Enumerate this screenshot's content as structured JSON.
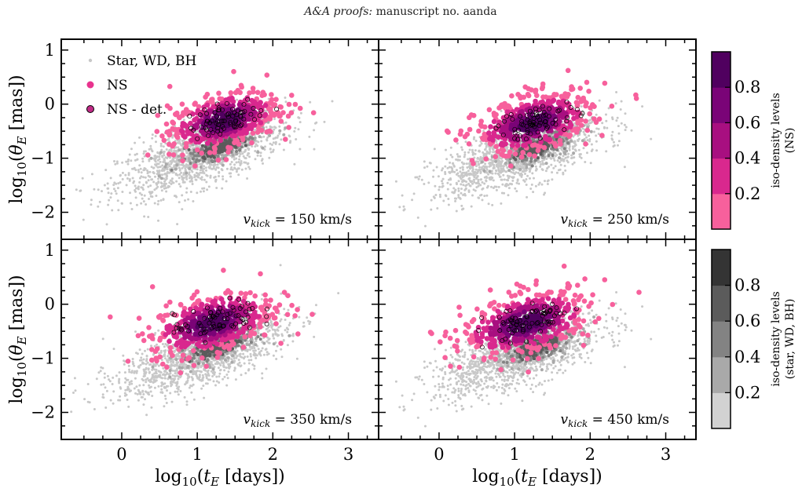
{
  "header": {
    "italic": "A&A proofs:",
    "rest": " manuscript no. aanda"
  },
  "chart_data": {
    "type": "scatter",
    "layout": "2x2 grid with shared axes",
    "xlabel": "log10 (tE [days])",
    "ylabel": "log10 (θE [mas])",
    "xlim": [
      -0.8,
      3.4
    ],
    "ylim": [
      -2.5,
      1.2
    ],
    "xticks": [
      0,
      1,
      2,
      3
    ],
    "yticks": [
      -2,
      -1,
      0,
      1
    ],
    "legend": {
      "position": "top-left",
      "entries": [
        {
          "label": "Star, WD, BH",
          "color": "#c8c8c8",
          "marker": "small dot"
        },
        {
          "label": "NS",
          "color": "#e8338e",
          "marker": "filled circle"
        },
        {
          "label": "NS - det.",
          "color": "#c02b86",
          "marker": "circle with black edge"
        }
      ]
    },
    "panels": [
      {
        "label_prefix": "v",
        "label_sub": "kick",
        "label_suffix": " = 150 km/s",
        "bg": {
          "cx": 1.05,
          "cy": -0.95,
          "slope": 0.45,
          "spread_x": 0.55,
          "spread_y": 0.28
        },
        "ns": {
          "cx": 1.35,
          "cy": -0.3,
          "slope": 0.32,
          "spread_x": 0.36,
          "spread_y": 0.24
        }
      },
      {
        "label_prefix": "v",
        "label_sub": "kick",
        "label_suffix": " = 250 km/s",
        "bg": {
          "cx": 1.05,
          "cy": -0.95,
          "slope": 0.45,
          "spread_x": 0.55,
          "spread_y": 0.28
        },
        "ns": {
          "cx": 1.25,
          "cy": -0.35,
          "slope": 0.32,
          "spread_x": 0.38,
          "spread_y": 0.25
        }
      },
      {
        "label_prefix": "v",
        "label_sub": "kick",
        "label_suffix": " = 350 km/s",
        "bg": {
          "cx": 1.05,
          "cy": -0.95,
          "slope": 0.45,
          "spread_x": 0.55,
          "spread_y": 0.28
        },
        "ns": {
          "cx": 1.2,
          "cy": -0.35,
          "slope": 0.32,
          "spread_x": 0.4,
          "spread_y": 0.26
        }
      },
      {
        "label_prefix": "v",
        "label_sub": "kick",
        "label_suffix": " = 450 km/s",
        "bg": {
          "cx": 1.05,
          "cy": -0.95,
          "slope": 0.45,
          "spread_x": 0.55,
          "spread_y": 0.28
        },
        "ns": {
          "cx": 1.15,
          "cy": -0.35,
          "slope": 0.32,
          "spread_x": 0.42,
          "spread_y": 0.27
        }
      }
    ],
    "colorbars": [
      {
        "label_line1": "iso-density levels",
        "label_line2": "(NS)",
        "ticks": [
          "0.2",
          "0.4",
          "0.6",
          "0.8"
        ],
        "colors": [
          "#f7609c",
          "#d9288e",
          "#a80f80",
          "#7a0477",
          "#50005f"
        ]
      },
      {
        "label_line1": "iso-density levels",
        "label_line2": "(star, WD, BH)",
        "ticks": [
          "0.2",
          "0.4",
          "0.6",
          "0.8"
        ],
        "colors": [
          "#d2d2d2",
          "#a9a9a9",
          "#838383",
          "#5b5b5b",
          "#343434"
        ]
      }
    ]
  }
}
